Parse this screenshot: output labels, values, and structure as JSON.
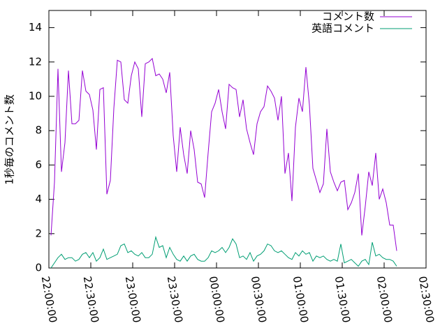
{
  "chart_data": {
    "type": "line",
    "y_label": "1秒毎のコメント数",
    "x": [
      "22:01:30",
      "22:04:00",
      "22:06:30",
      "22:09:00",
      "22:11:30",
      "22:14:00",
      "22:16:30",
      "22:19:00",
      "22:21:30",
      "22:24:00",
      "22:26:30",
      "22:29:00",
      "22:31:30",
      "22:34:00",
      "22:36:30",
      "22:39:00",
      "22:41:30",
      "22:44:00",
      "22:46:30",
      "22:49:00",
      "22:51:30",
      "22:54:00",
      "22:56:30",
      "22:59:00",
      "23:01:30",
      "23:04:00",
      "23:06:30",
      "23:09:00",
      "23:11:30",
      "23:14:00",
      "23:16:30",
      "23:19:00",
      "23:21:30",
      "23:24:00",
      "23:26:30",
      "23:29:00",
      "23:31:30",
      "23:34:00",
      "23:36:30",
      "23:39:00",
      "23:41:30",
      "23:44:00",
      "23:46:30",
      "23:49:00",
      "23:51:30",
      "23:54:00",
      "23:56:30",
      "23:59:00",
      "00:01:30",
      "00:04:00",
      "00:06:30",
      "00:09:00",
      "00:11:30",
      "00:14:00",
      "00:16:30",
      "00:19:00",
      "00:21:30",
      "00:24:00",
      "00:26:30",
      "00:29:00",
      "00:31:30",
      "00:34:00",
      "00:36:30",
      "00:39:00",
      "00:41:30",
      "00:44:00",
      "00:46:30",
      "00:49:00",
      "00:51:30",
      "00:54:00",
      "00:56:30",
      "00:59:00",
      "01:01:30",
      "01:04:00",
      "01:06:30",
      "01:09:00",
      "01:11:30",
      "01:14:00",
      "01:16:30",
      "01:19:00",
      "01:21:30",
      "01:24:00",
      "01:26:30",
      "01:29:00",
      "01:31:30",
      "01:34:00",
      "01:36:30",
      "01:39:00",
      "01:41:30",
      "01:44:00",
      "01:46:30",
      "01:49:00",
      "01:51:30",
      "01:54:00",
      "01:56:30",
      "01:59:00",
      "02:01:30",
      "02:04:00",
      "02:06:30",
      "02:09:00"
    ],
    "series": [
      {
        "name": "コメント数",
        "color": "#9400d3",
        "values": [
          1.9,
          5.0,
          11.6,
          5.6,
          7.3,
          11.5,
          8.4,
          8.4,
          8.6,
          11.5,
          10.3,
          10.1,
          9.2,
          6.9,
          10.4,
          10.5,
          4.3,
          5.1,
          9.3,
          12.1,
          12.0,
          9.8,
          9.6,
          11.2,
          12.0,
          11.6,
          8.8,
          11.9,
          12.0,
          12.2,
          11.2,
          11.3,
          11.0,
          10.2,
          11.4,
          7.7,
          5.6,
          8.2,
          6.6,
          5.5,
          8.0,
          6.9,
          5.0,
          4.9,
          4.1,
          6.7,
          9.1,
          9.6,
          10.4,
          9.1,
          8.1,
          10.7,
          10.5,
          10.4,
          8.8,
          9.8,
          8.1,
          7.3,
          6.6,
          8.4,
          9.1,
          9.4,
          10.6,
          10.3,
          9.9,
          8.6,
          10.0,
          5.5,
          6.7,
          3.9,
          8.2,
          9.9,
          9.1,
          11.7,
          9.5,
          5.8,
          5.1,
          4.4,
          4.9,
          8.1,
          5.6,
          5.0,
          4.5,
          5.0,
          5.1,
          3.4,
          3.8,
          4.4,
          5.5,
          1.9,
          3.6,
          5.6,
          4.8,
          6.7,
          4.0,
          4.6,
          3.8,
          2.5,
          2.5,
          1.0
        ]
      },
      {
        "name": "英語コメント",
        "color": "#009e73",
        "values": [
          0,
          0.3,
          0.6,
          0.8,
          0.5,
          0.6,
          0.6,
          0.4,
          0.5,
          0.8,
          0.9,
          0.6,
          0.9,
          0.4,
          0.6,
          1.1,
          0.5,
          0.6,
          0.7,
          0.8,
          1.3,
          1.4,
          0.9,
          1.0,
          0.8,
          0.7,
          0.9,
          0.6,
          0.6,
          0.8,
          1.8,
          1.2,
          1.3,
          0.6,
          1.2,
          0.8,
          0.5,
          0.4,
          0.7,
          0.4,
          0.7,
          0.8,
          0.5,
          0.4,
          0.4,
          0.6,
          1.0,
          0.9,
          1.0,
          1.2,
          0.9,
          1.2,
          1.7,
          1.4,
          0.6,
          0.7,
          0.5,
          0.9,
          0.4,
          0.7,
          0.8,
          1.0,
          1.4,
          1.3,
          1.0,
          0.9,
          1.0,
          0.8,
          0.6,
          0.5,
          0.9,
          0.7,
          1.0,
          0.8,
          0.9,
          0.4,
          0.7,
          0.6,
          0.7,
          0.5,
          0.4,
          0.5,
          0.4,
          1.4,
          0.3,
          0.4,
          0.5,
          0.3,
          0.1,
          0.4,
          0.5,
          0.2,
          1.5,
          0.7,
          0.8,
          0.6,
          0.5,
          0.5,
          0.4,
          0.1
        ]
      }
    ],
    "xlim": [
      "22:00:00",
      "02:30:00"
    ],
    "xticks": [
      "22:00:00",
      "22:30:00",
      "23:00:00",
      "23:30:00",
      "00:00:00",
      "00:30:00",
      "01:00:00",
      "01:30:00",
      "02:00:00",
      "02:30:00"
    ],
    "ylim": [
      0,
      15
    ],
    "yticks": [
      0,
      2,
      4,
      6,
      8,
      10,
      12,
      14
    ],
    "legend": "top-right"
  }
}
